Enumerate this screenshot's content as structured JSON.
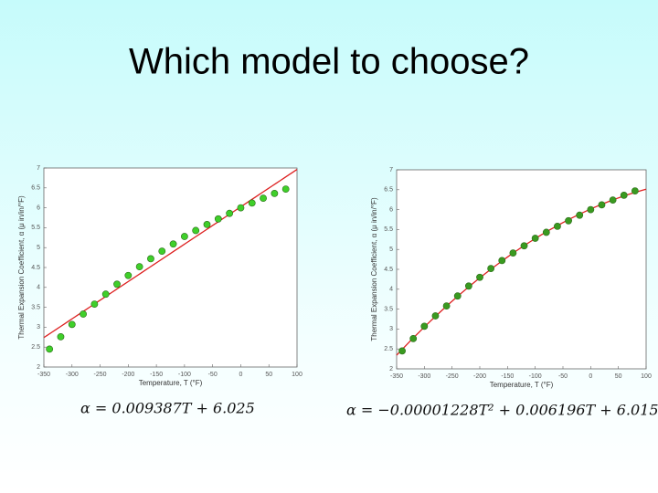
{
  "title": "Which model to choose?",
  "chart_data": [
    {
      "type": "scatter",
      "x_label": "Temperature, T (°F)",
      "y_label": "Thermal Expansion Coefficient, α (μ in/in/°F)",
      "x": [
        80,
        60,
        40,
        20,
        0,
        -20,
        -40,
        -60,
        -80,
        -100,
        -120,
        -140,
        -160,
        -180,
        -200,
        -220,
        -240,
        -260,
        -280,
        -300,
        -320,
        -340
      ],
      "values": [
        6.47,
        6.36,
        6.24,
        6.12,
        6.0,
        5.86,
        5.72,
        5.58,
        5.43,
        5.28,
        5.09,
        4.91,
        4.72,
        4.52,
        4.3,
        4.08,
        3.83,
        3.58,
        3.33,
        3.07,
        2.76,
        2.45
      ],
      "color": "#3fcf2a",
      "fit_color": "#dd2020",
      "fit_coefficients": [
        0.009387,
        6.025
      ],
      "equation": "α = 0.009387T + 6.025",
      "xlim": [
        -350,
        100
      ],
      "xticks": [
        -350,
        -300,
        -250,
        -200,
        -150,
        -100,
        -50,
        0,
        50,
        100
      ],
      "ylim": [
        2,
        7
      ],
      "yticks": [
        2,
        2.5,
        3,
        3.5,
        4,
        4.5,
        5,
        5.5,
        6,
        6.5,
        7
      ]
    },
    {
      "type": "scatter",
      "x_label": "Temperature, T (°F)",
      "y_label": "Thermal Expansion Coefficient, α (μ in/in/°F)",
      "x": [
        80,
        60,
        40,
        20,
        0,
        -20,
        -40,
        -60,
        -80,
        -100,
        -120,
        -140,
        -160,
        -180,
        -200,
        -220,
        -240,
        -260,
        -280,
        -300,
        -320,
        -340
      ],
      "values": [
        6.47,
        6.36,
        6.24,
        6.12,
        6.0,
        5.86,
        5.72,
        5.58,
        5.43,
        5.28,
        5.09,
        4.91,
        4.72,
        4.52,
        4.3,
        4.08,
        3.83,
        3.58,
        3.33,
        3.07,
        2.76,
        2.45
      ],
      "color": "#3a9a20",
      "fit_color": "#dd2020",
      "fit_coefficients": [
        -1.228e-05,
        0.006196,
        6.015
      ],
      "equation": "α = −0.00001228T² + 0.006196T + 6.015",
      "xlim": [
        -350,
        100
      ],
      "xticks": [
        -350,
        -300,
        -250,
        -200,
        -150,
        -100,
        -50,
        0,
        50,
        100
      ],
      "ylim": [
        2,
        7
      ],
      "yticks": [
        2,
        2.5,
        3,
        3.5,
        4,
        4.5,
        5,
        5.5,
        6,
        6.5,
        7
      ]
    }
  ]
}
